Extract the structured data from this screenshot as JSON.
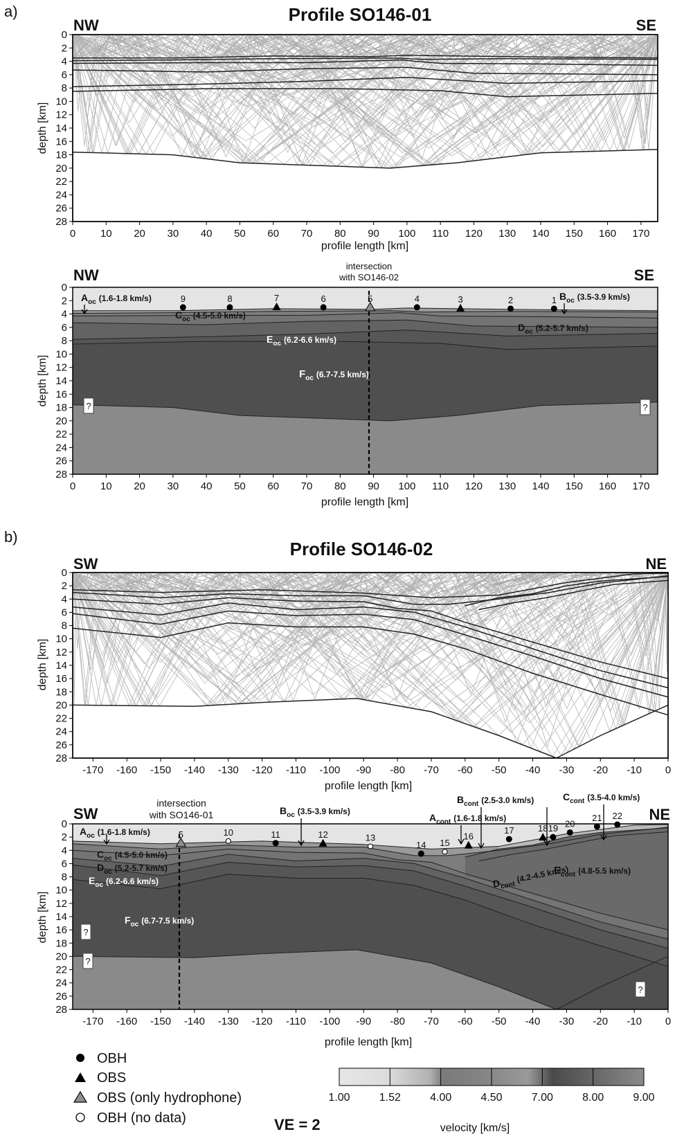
{
  "panel_a": {
    "letter": "a)",
    "title": "Profile SO146-01",
    "top_plot": {
      "left_dir": "NW",
      "right_dir": "SE",
      "ylabel": "depth [km]",
      "xlabel": "profile length [km]",
      "xticks": [
        "0",
        "10",
        "20",
        "30",
        "40",
        "50",
        "60",
        "70",
        "80",
        "90",
        "100",
        "110",
        "120",
        "130",
        "140",
        "150",
        "160",
        "170"
      ],
      "yticks": [
        "0",
        "2",
        "4",
        "6",
        "8",
        "10",
        "12",
        "14",
        "16",
        "18",
        "20",
        "22",
        "24",
        "26",
        "28"
      ]
    },
    "bottom_plot": {
      "left_dir": "NW",
      "right_dir": "SE",
      "intersection_label_1": "intersection",
      "intersection_label_2": "with SO146-02",
      "ylabel": "depth [km]",
      "xlabel": "profile length [km]",
      "xticks": [
        "0",
        "10",
        "20",
        "30",
        "40",
        "50",
        "60",
        "70",
        "80",
        "90",
        "100",
        "110",
        "120",
        "130",
        "140",
        "150",
        "160",
        "170"
      ],
      "yticks": [
        "0",
        "2",
        "4",
        "6",
        "8",
        "10",
        "12",
        "14",
        "16",
        "18",
        "20",
        "22",
        "24",
        "26",
        "28"
      ],
      "stations": [
        "9",
        "8",
        "7",
        "6",
        "5",
        "4",
        "3",
        "2",
        "1"
      ],
      "layers": {
        "A": {
          "base": "A",
          "sub": "oc",
          "vel": "(1.6-1.8 km/s)"
        },
        "B": {
          "base": "B",
          "sub": "oc",
          "vel": "(3.5-3.9 km/s)"
        },
        "C": {
          "base": "C",
          "sub": "oc",
          "vel": "(4.5-5.0 km/s)"
        },
        "D": {
          "base": "D",
          "sub": "oc",
          "vel": "(5.2-5.7 km/s)"
        },
        "E": {
          "base": "E",
          "sub": "oc",
          "vel": "(6.2-6.6 km/s)"
        },
        "F": {
          "base": "F",
          "sub": "oc",
          "vel": "(6.7-7.5 km/s)"
        }
      },
      "unknown_mark": "?"
    }
  },
  "panel_b": {
    "letter": "b)",
    "title": "Profile SO146-02",
    "top_plot": {
      "left_dir": "SW",
      "right_dir": "NE",
      "ylabel": "depth [km]",
      "xlabel": "profile length [km]",
      "xticks": [
        "-170",
        "-160",
        "-150",
        "-140",
        "-130",
        "-120",
        "-110",
        "-100",
        "-90",
        "-80",
        "-70",
        "-60",
        "-50",
        "-40",
        "-30",
        "-20",
        "-10",
        "0"
      ],
      "yticks": [
        "0",
        "2",
        "4",
        "6",
        "8",
        "10",
        "12",
        "14",
        "16",
        "18",
        "20",
        "22",
        "24",
        "26",
        "28"
      ]
    },
    "bottom_plot": {
      "left_dir": "SW",
      "right_dir": "NE",
      "intersection_label_1": "intersection",
      "intersection_label_2": "with SO146-01",
      "ylabel": "depth [km]",
      "xlabel": "profile length [km]",
      "xticks": [
        "-170",
        "-160",
        "-150",
        "-140",
        "-130",
        "-120",
        "-110",
        "-100",
        "-90",
        "-80",
        "-70",
        "-60",
        "-50",
        "-40",
        "-30",
        "-20",
        "-10",
        "0"
      ],
      "yticks": [
        "0",
        "2",
        "4",
        "6",
        "8",
        "10",
        "12",
        "14",
        "16",
        "18",
        "20",
        "22",
        "24",
        "26",
        "28"
      ],
      "stations": [
        "5",
        "10",
        "11",
        "12",
        "13",
        "14",
        "15",
        "16",
        "17",
        "18",
        "19",
        "20",
        "21",
        "22"
      ],
      "layers": {
        "A": {
          "base": "A",
          "sub": "oc",
          "vel": "(1.6-1.8 km/s)"
        },
        "B": {
          "base": "B",
          "sub": "oc",
          "vel": "(3.5-3.9 km/s)"
        },
        "C": {
          "base": "C",
          "sub": "oc",
          "vel": "(4.5-5.0 km/s)"
        },
        "D": {
          "base": "D",
          "sub": "oc",
          "vel": "(5.2-5.7 km/s)"
        },
        "E": {
          "base": "E",
          "sub": "oc",
          "vel": "(6.2-6.6 km/s)"
        },
        "F": {
          "base": "F",
          "sub": "oc",
          "vel": "(6.7-7.5 km/s)"
        },
        "Acont": {
          "base": "A",
          "sub": "cont",
          "vel": "(1.6-1.8 km/s)"
        },
        "Bcont": {
          "base": "B",
          "sub": "cont",
          "vel": "(2.5-3.0 km/s)"
        },
        "Ccont": {
          "base": "C",
          "sub": "cont",
          "vel": "(3.5-4.0 km/s)"
        },
        "Dcont": {
          "base": "D",
          "sub": "cont",
          "vel": "(4.2-4.5 km/s)"
        },
        "Econt": {
          "base": "E",
          "sub": "cont",
          "vel": "(4.8-5.5 km/s)"
        }
      },
      "unknown_mark": "?"
    }
  },
  "legend": {
    "obh": "OBH",
    "obs": "OBS",
    "obs_hydro": "OBS (only hydrophone)",
    "obh_nodata": "OBH (no data)"
  },
  "ve_label": "VE = 2",
  "colorbar": {
    "ticks": [
      "1.00",
      "1.52",
      "4.00",
      "4.50",
      "7.00",
      "8.00",
      "9.00"
    ],
    "label": "velocity [km/s]"
  },
  "colors": {
    "water": "#e4e4e4",
    "upper_sed": "#c8c8c8",
    "mid_crust": "#7f7f7f",
    "lower_crust": "#5e5e5e",
    "mantle": "#8a8a8a",
    "ray": "#a9a9a9",
    "boundary": "#222222"
  }
}
